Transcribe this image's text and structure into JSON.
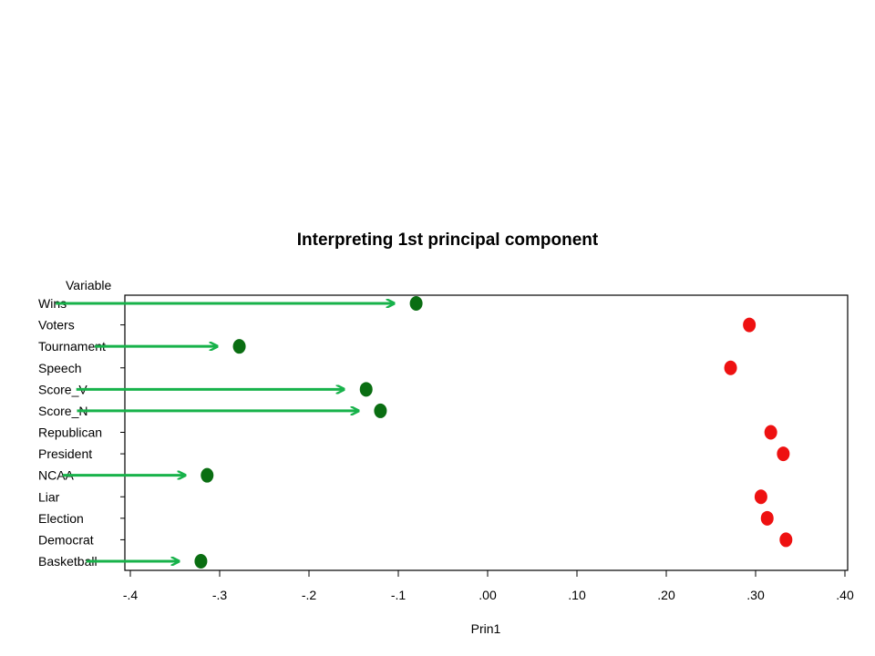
{
  "chart_data": {
    "type": "scatter",
    "title": "Interpreting 1st principal component",
    "xlabel": "Prin1",
    "ylabel": "Variable",
    "xlim": [
      -0.4,
      0.4
    ],
    "xticks": [
      -0.4,
      -0.3,
      -0.2,
      -0.1,
      0.0,
      0.1,
      0.2,
      0.3,
      0.4
    ],
    "xtick_labels": [
      "-.4",
      "-.3",
      "-.2",
      "-.1",
      ".00",
      ".10",
      ".20",
      ".30",
      ".40"
    ],
    "categories": [
      "Wins",
      "Voters",
      "Tournament",
      "Speech",
      "Score_V",
      "Score_N",
      "Republican",
      "President",
      "NCAA",
      "Liar",
      "Election",
      "Democrat",
      "Basketball"
    ],
    "values": [
      -0.08,
      0.293,
      -0.278,
      0.272,
      -0.136,
      -0.12,
      0.317,
      0.331,
      -0.314,
      0.306,
      0.313,
      0.334,
      -0.321
    ],
    "point_colors": [
      "#0a6e12",
      "#ee1111",
      "#0a6e12",
      "#ee1111",
      "#0a6e12",
      "#0a6e12",
      "#ee1111",
      "#ee1111",
      "#0a6e12",
      "#ee1111",
      "#ee1111",
      "#ee1111",
      "#0a6e12"
    ],
    "highlighted": [
      "Wins",
      "Tournament",
      "Score_V",
      "Score_N",
      "NCAA",
      "Basketball"
    ],
    "arrow_color": "#17b24a",
    "grid": false
  }
}
